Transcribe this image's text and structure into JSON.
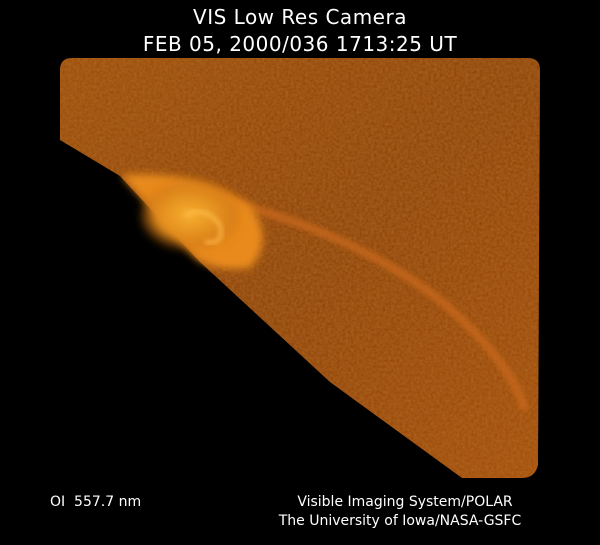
{
  "header": {
    "title": "VIS Low Res Camera",
    "timestamp": "FEB 05, 2000/036 1713:25 UT"
  },
  "footer": {
    "wavelength": "OI  557.7 nm",
    "credit_line1": "Visible Imaging System/POLAR",
    "credit_line2": "The University of Iowa/NASA-GSFC"
  },
  "image": {
    "subject": "auroral oval, Earth dayside limb",
    "colors": {
      "background": "#000000",
      "disk": "#8a3a08",
      "aurora": "#f0a020"
    }
  }
}
